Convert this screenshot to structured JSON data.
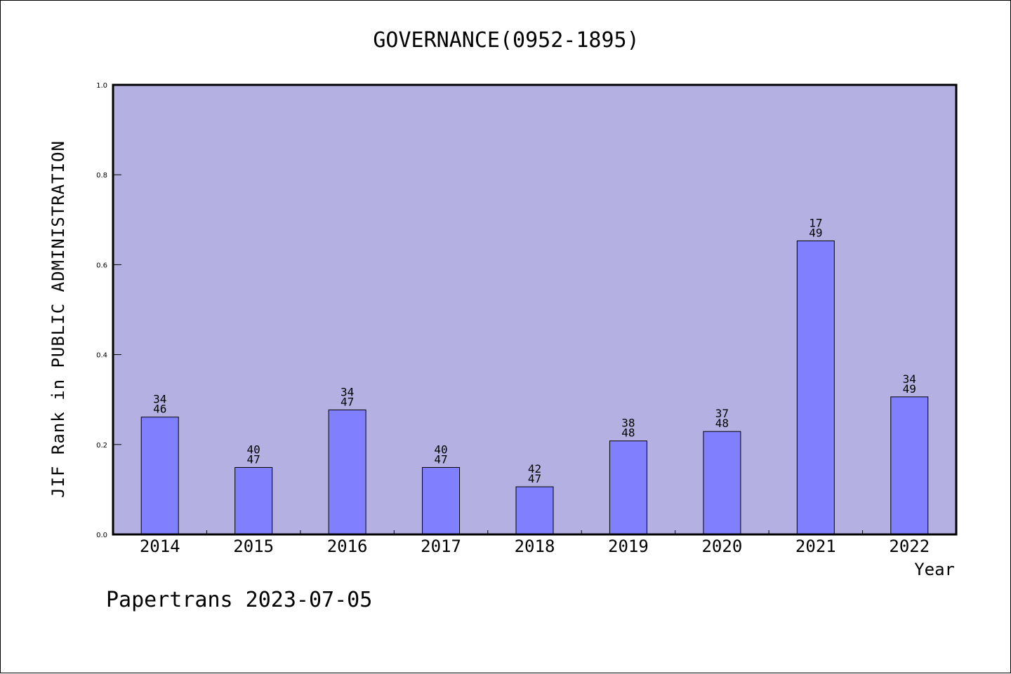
{
  "colors": {
    "plot_background": "#b5b0e2",
    "bar_fill": "#8080ff",
    "axis": "#000000"
  },
  "chart_data": {
    "type": "bar",
    "title": "GOVERNANCE(0952-1895)",
    "xlabel": "Year",
    "ylabel": "JIF Rank in PUBLIC ADMINISTRATION",
    "ylim": [
      0,
      1.0
    ],
    "yticks": [
      "0.0",
      "0.2",
      "0.4",
      "0.6",
      "0.8",
      "1.0"
    ],
    "grid": false,
    "categories": [
      "2014",
      "2015",
      "2016",
      "2017",
      "2018",
      "2019",
      "2020",
      "2021",
      "2022"
    ],
    "values": [
      0.261,
      0.149,
      0.277,
      0.149,
      0.106,
      0.208,
      0.229,
      0.653,
      0.306
    ],
    "annotations": [
      {
        "top": "34",
        "bottom": "46"
      },
      {
        "top": "40",
        "bottom": "47"
      },
      {
        "top": "34",
        "bottom": "47"
      },
      {
        "top": "40",
        "bottom": "47"
      },
      {
        "top": "42",
        "bottom": "47"
      },
      {
        "top": "38",
        "bottom": "48"
      },
      {
        "top": "37",
        "bottom": "48"
      },
      {
        "top": "17",
        "bottom": "49"
      },
      {
        "top": "34",
        "bottom": "49"
      }
    ]
  },
  "footer": "Papertrans 2023-07-05"
}
